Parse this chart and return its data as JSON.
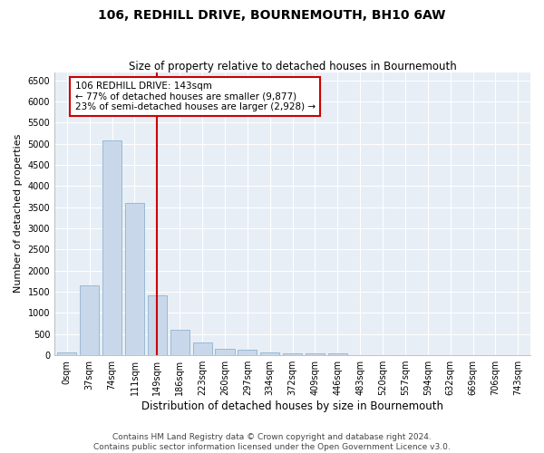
{
  "title": "106, REDHILL DRIVE, BOURNEMOUTH, BH10 6AW",
  "subtitle": "Size of property relative to detached houses in Bournemouth",
  "xlabel": "Distribution of detached houses by size in Bournemouth",
  "ylabel": "Number of detached properties",
  "footer_line1": "Contains HM Land Registry data © Crown copyright and database right 2024.",
  "footer_line2": "Contains public sector information licensed under the Open Government Licence v3.0.",
  "bar_labels": [
    "0sqm",
    "37sqm",
    "74sqm",
    "111sqm",
    "149sqm",
    "186sqm",
    "223sqm",
    "260sqm",
    "297sqm",
    "334sqm",
    "372sqm",
    "409sqm",
    "446sqm",
    "483sqm",
    "520sqm",
    "557sqm",
    "594sqm",
    "632sqm",
    "669sqm",
    "706sqm",
    "743sqm"
  ],
  "bar_values": [
    75,
    1650,
    5075,
    3600,
    1420,
    610,
    300,
    155,
    130,
    75,
    50,
    50,
    50,
    0,
    0,
    0,
    0,
    0,
    0,
    0,
    0
  ],
  "bar_color": "#c8d8ea",
  "bar_edge_color": "#99b9d4",
  "vline_index": 4,
  "vline_color": "#cc0000",
  "annotation_text": "106 REDHILL DRIVE: 143sqm\n← 77% of detached houses are smaller (9,877)\n23% of semi-detached houses are larger (2,928) →",
  "annotation_box_facecolor": "#ffffff",
  "annotation_box_edgecolor": "#cc0000",
  "ylim": [
    0,
    6700
  ],
  "yticks": [
    0,
    500,
    1000,
    1500,
    2000,
    2500,
    3000,
    3500,
    4000,
    4500,
    5000,
    5500,
    6000,
    6500
  ],
  "fig_bg_color": "#ffffff",
  "plot_bg_color": "#e8eef5",
  "grid_color": "#ffffff",
  "title_fontsize": 10,
  "subtitle_fontsize": 8.5,
  "xlabel_fontsize": 8.5,
  "ylabel_fontsize": 8,
  "tick_fontsize": 7,
  "annotation_fontsize": 7.5,
  "footer_fontsize": 6.5
}
